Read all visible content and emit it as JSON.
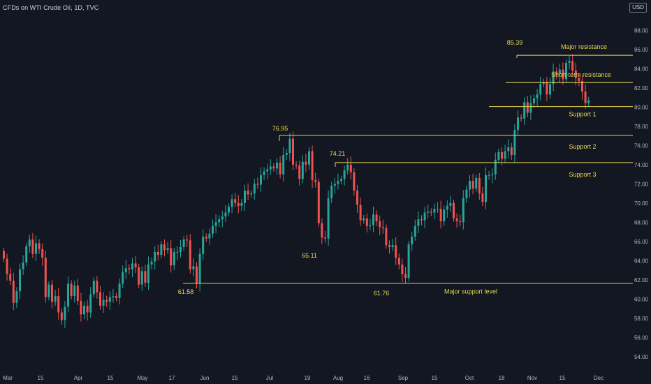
{
  "header": {
    "title": "CFDs on WTI Crude Oil, 1D, TVC",
    "currency": "USD"
  },
  "colors": {
    "background": "#131722",
    "up": "#26a69a",
    "down": "#ef5350",
    "levels": "#e8d44d",
    "axis_text": "#b2b5be",
    "grid": "#1c2030"
  },
  "chart_data": {
    "type": "candlestick",
    "title": "CFDs on WTI Crude Oil, 1D, TVC",
    "ylabel": "USD",
    "ylim": [
      52.6,
      90.2
    ],
    "y_ticks": [
      "54.00",
      "56.00",
      "58.00",
      "60.00",
      "62.00",
      "64.00",
      "66.00",
      "68.00",
      "70.00",
      "72.00",
      "74.00",
      "76.00",
      "78.00",
      "80.00",
      "82.00",
      "84.00",
      "86.00",
      "88.00"
    ],
    "x_ticks": [
      "Mar",
      "15",
      "Apr",
      "15",
      "May",
      "17",
      "Jun",
      "15",
      "Jul",
      "19",
      "Aug",
      "16",
      "Sep",
      "15",
      "Oct",
      "18",
      "Nov",
      "15",
      "Dec"
    ],
    "grid": false,
    "closes": [
      64.2,
      62.6,
      61.9,
      59.6,
      60.8,
      63.1,
      63.8,
      65.5,
      66.2,
      64.7,
      65.8,
      65.2,
      64.3,
      60.2,
      61.5,
      59.7,
      60.3,
      58.6,
      57.8,
      59.2,
      61.6,
      60.3,
      61.4,
      59.8,
      58.4,
      59.3,
      58.6,
      60.5,
      61.9,
      60.7,
      59.3,
      59.9,
      59.7,
      60.2,
      60.3,
      60.1,
      61.6,
      62.8,
      63.2,
      63.1,
      63.7,
      63.3,
      61.5,
      62.9,
      61.7,
      63.6,
      63.9,
      64.9,
      64.6,
      65.7,
      65.1,
      65.3,
      63.5,
      64.9,
      64.9,
      65.4,
      66.2,
      66.1,
      63.1,
      63.4,
      61.6,
      64.7,
      66.5,
      66.3,
      66.8,
      67.6,
      68.0,
      68.3,
      68.6,
      69.0,
      69.6,
      70.4,
      70.0,
      69.7,
      70.0,
      71.3,
      70.9,
      71.0,
      72.0,
      71.9,
      72.9,
      73.3,
      73.5,
      73.8,
      73.6,
      74.2,
      73.0,
      75.0,
      75.2,
      76.7,
      74.0,
      73.9,
      72.5,
      74.3,
      74.0,
      75.4,
      72.4,
      72.2,
      67.9,
      66.4,
      66.3,
      70.5,
      71.8,
      72.0,
      72.3,
      72.5,
      73.4,
      74.0,
      73.2,
      71.3,
      69.8,
      68.2,
      68.4,
      67.6,
      67.7,
      68.8,
      68.1,
      67.5,
      67.4,
      65.6,
      65.4,
      65.6,
      64.3,
      63.6,
      62.6,
      62.2,
      65.7,
      66.5,
      67.6,
      68.3,
      68.2,
      69.0,
      69.1,
      69.0,
      69.4,
      69.4,
      68.1,
      69.3,
      69.7,
      70.0,
      68.4,
      68.1,
      68.0,
      70.5,
      71.4,
      72.3,
      71.5,
      72.6,
      71.0,
      70.1,
      72.9,
      72.9,
      73.0,
      74.5,
      75.3,
      74.6,
      75.4,
      75.8,
      75.0,
      77.6,
      78.9,
      78.8,
      80.5,
      79.4,
      80.4,
      80.9,
      81.3,
      82.4,
      82.6,
      81.3,
      82.4,
      83.7,
      83.4,
      83.9,
      82.9,
      84.6,
      84.8,
      83.8,
      83.0,
      82.7,
      81.6,
      80.4,
      80.7
    ],
    "labels": [
      {
        "text": "85.39",
        "value": 85.39
      },
      {
        "text": "76.95",
        "value": 76.95
      },
      {
        "text": "74.21",
        "value": 74.21
      },
      {
        "text": "65.11",
        "value": 65.11
      },
      {
        "text": "61.58",
        "value": 61.58
      },
      {
        "text": "61.76",
        "value": 61.76
      }
    ],
    "levels": [
      {
        "name": "Major resistance",
        "value": 85.39
      },
      {
        "name": "Short-term resistance",
        "value": 82.55
      },
      {
        "name": "Support 1",
        "value": 80.05
      },
      {
        "name": "Support 2",
        "value": 77.05
      },
      {
        "name": "Support 3",
        "value": 74.21
      },
      {
        "name": "Major support level",
        "value": 61.65
      }
    ]
  }
}
